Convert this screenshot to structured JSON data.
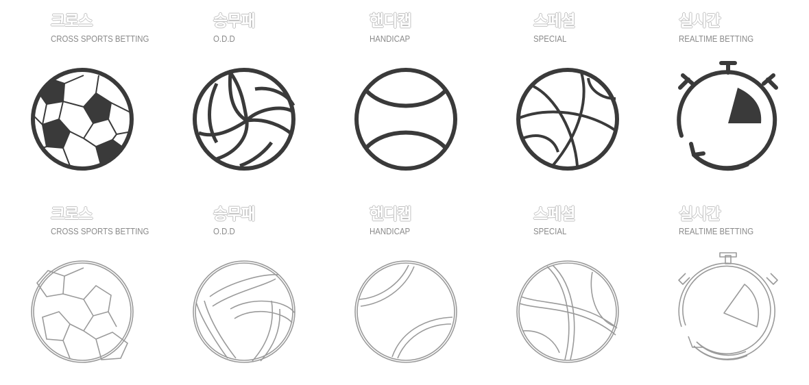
{
  "categories": [
    {
      "title": "크로스",
      "subtitle": "CROSS SPORTS BETTING",
      "icon": "soccer-ball-icon"
    },
    {
      "title": "승무패",
      "subtitle": "O.D.D",
      "icon": "volleyball-icon"
    },
    {
      "title": "핸디캡",
      "subtitle": "HANDICAP",
      "icon": "tennis-ball-icon"
    },
    {
      "title": "스페셜",
      "subtitle": "SPECIAL",
      "icon": "basketball-icon"
    },
    {
      "title": "실시간",
      "subtitle": "REALTIME BETTING",
      "icon": "stopwatch-icon"
    }
  ],
  "colors": {
    "icon_dark": "#3a3a3a",
    "icon_outline": "#9a9a9a",
    "subtitle": "#8a8a8a"
  }
}
